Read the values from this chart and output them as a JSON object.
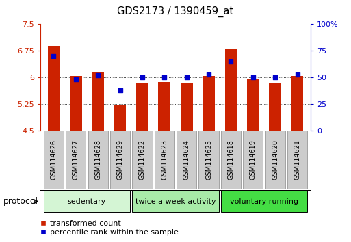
{
  "title": "GDS2173 / 1390459_at",
  "categories": [
    "GSM114626",
    "GSM114627",
    "GSM114628",
    "GSM114629",
    "GSM114622",
    "GSM114623",
    "GSM114624",
    "GSM114625",
    "GSM114618",
    "GSM114619",
    "GSM114620",
    "GSM114621"
  ],
  "red_values": [
    6.9,
    6.05,
    6.15,
    5.22,
    5.85,
    5.87,
    5.85,
    6.05,
    6.82,
    5.97,
    5.85,
    6.05
  ],
  "blue_values": [
    70,
    48,
    52,
    38,
    50,
    50,
    50,
    53,
    65,
    50,
    50,
    53
  ],
  "ylim_left": [
    4.5,
    7.5
  ],
  "ylim_right": [
    0,
    100
  ],
  "yticks_left": [
    4.5,
    5.25,
    6.0,
    6.75,
    7.5
  ],
  "yticks_right": [
    0,
    25,
    50,
    75,
    100
  ],
  "ytick_labels_left": [
    "4.5",
    "5.25",
    "6",
    "6.75",
    "7.5"
  ],
  "ytick_labels_right": [
    "0",
    "25",
    "50",
    "75",
    "100%"
  ],
  "groups": [
    {
      "label": "sedentary",
      "start": 0,
      "end": 3,
      "color": "#d4f5d4"
    },
    {
      "label": "twice a week activity",
      "start": 4,
      "end": 7,
      "color": "#a8eba8"
    },
    {
      "label": "voluntary running",
      "start": 8,
      "end": 11,
      "color": "#44dd44"
    }
  ],
  "bar_color": "#cc2200",
  "dot_color": "#0000cc",
  "bar_bottom": 4.5,
  "protocol_label": "protocol",
  "legend_red": "transformed count",
  "legend_blue": "percentile rank within the sample",
  "grid_color": "#000000",
  "bar_width": 0.55,
  "dot_size": 25,
  "label_box_color": "#cccccc",
  "label_box_edge": "#888888"
}
